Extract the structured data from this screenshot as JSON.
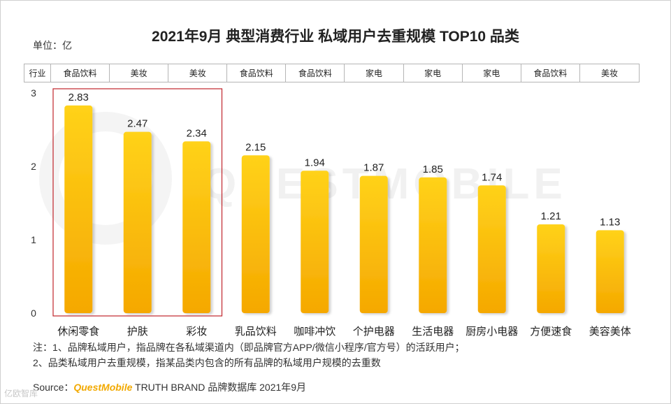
{
  "title": "2021年9月 典型消费行业 私域用户去重规模 TOP10 品类",
  "unit_label": "单位：亿",
  "industry_header": "行业",
  "industries": [
    "食品饮料",
    "美妆",
    "美妆",
    "食品饮料",
    "食品饮料",
    "家电",
    "家电",
    "家电",
    "食品饮料",
    "美妆"
  ],
  "watermark": "QUESTMOBILE",
  "notes": [
    "注：1、品牌私域用户，指品牌在各私域渠道内（即品牌官方APP/微信小程序/官方号）的活跃用户；",
    "2、品类私域用户去重规模，指某品类内包含的所有品牌的私域用户规模的去重数"
  ],
  "source": {
    "prefix": "Source：",
    "brand": "QuestMobile",
    "suffix": " TRUTH BRAND 品牌数据库 2021年9月"
  },
  "corner_mark": "亿欧智库",
  "colors": {
    "bar_top": "#ffd21a",
    "bar_bottom": "#f5a800",
    "highlight_box": "#c0242b",
    "axis": "#888888"
  },
  "chart_data": {
    "type": "bar",
    "title": "2021年9月 典型消费行业 私域用户去重规模 TOP10 品类",
    "ylabel": "单位：亿",
    "xlabel": "",
    "categories": [
      "休闲零食",
      "护肤",
      "彩妆",
      "乳品饮料",
      "咖啡冲饮",
      "个护电器",
      "生活电器",
      "厨房小电器",
      "方便速食",
      "美容美体"
    ],
    "values": [
      2.83,
      2.47,
      2.34,
      2.15,
      1.94,
      1.87,
      1.85,
      1.74,
      1.21,
      1.13
    ],
    "value_labels": [
      "2.83",
      "2.47",
      "2.34",
      "2.15",
      "1.94",
      "1.87",
      "1.85",
      "1.74",
      "1.21",
      "1.13"
    ],
    "ylim": [
      0,
      3
    ],
    "yticks": [
      "0",
      "1",
      "2",
      "3"
    ],
    "highlighted_categories": [
      "休闲零食",
      "护肤",
      "彩妆"
    ],
    "grid": false,
    "legend": "none"
  }
}
